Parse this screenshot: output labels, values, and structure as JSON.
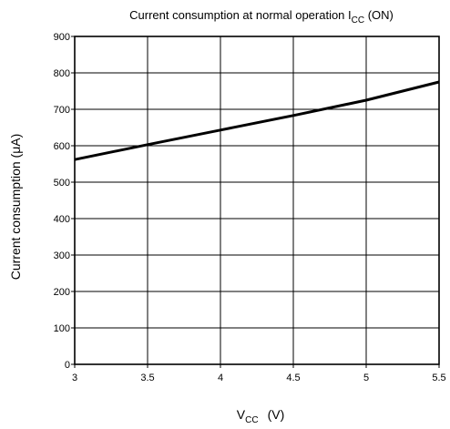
{
  "chart_data": {
    "type": "line",
    "title": {
      "prefix": "Current consumption at normal operation I",
      "subscript": "CC",
      "suffix": " (ON)"
    },
    "xlabel": {
      "main": "V",
      "subscript": "CC",
      "unit": "(V)"
    },
    "ylabel": "Current consumption   (μA)",
    "xlim": [
      3,
      5.5
    ],
    "ylim": [
      0,
      900
    ],
    "x_ticks": [
      3,
      3.5,
      4,
      4.5,
      5,
      5.5
    ],
    "x_tick_labels": [
      "3",
      "3.5",
      "4",
      "4.5",
      "5",
      "5.5"
    ],
    "y_ticks": [
      0,
      100,
      200,
      300,
      400,
      500,
      600,
      700,
      800,
      900
    ],
    "y_tick_labels": [
      "0",
      "100",
      "200",
      "300",
      "400",
      "500",
      "600",
      "700",
      "800",
      "900"
    ],
    "grid": true,
    "legend": "none",
    "colors": {
      "line": "#000000",
      "grid": "#000000",
      "background": "#ffffff"
    },
    "series": [
      {
        "x": [
          3,
          3.5,
          4,
          4.5,
          5,
          5.5
        ],
        "y": [
          562,
          603,
          643,
          683,
          725,
          775
        ]
      }
    ]
  }
}
